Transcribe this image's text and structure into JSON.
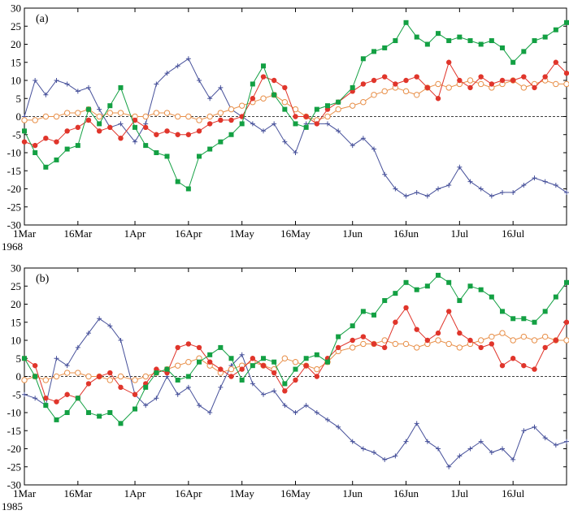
{
  "colors": {
    "green": "#13a043",
    "red": "#e0352b",
    "orange": "#e8904a",
    "blue": "#46509a",
    "axis": "#000000"
  },
  "chart_data": [
    {
      "type": "line",
      "panel_label": "(a)",
      "year": "1968",
      "x_unit": "day since 1 March",
      "xlim": [
        0,
        152
      ],
      "xticks": [
        0,
        15,
        31,
        46,
        61,
        76,
        92,
        107,
        122,
        137
      ],
      "xtick_labels": [
        "1Mar",
        "16Mar",
        "1Apr",
        "16Apr",
        "1May",
        "16May",
        "1Jun",
        "16Jun",
        "1Jul",
        "16Jul"
      ],
      "ylim": [
        -30,
        30
      ],
      "yticks": [
        -30,
        -25,
        -20,
        -15,
        -10,
        -5,
        0,
        5,
        10,
        15,
        20,
        25,
        30
      ],
      "zero_line": "dashed",
      "series": [
        {
          "name": "green-squares",
          "marker": "square-filled",
          "x": [
            0,
            3,
            6,
            9,
            12,
            15,
            18,
            21,
            24,
            27,
            31,
            34,
            37,
            40,
            43,
            46,
            49,
            52,
            55,
            58,
            61,
            64,
            67,
            70,
            73,
            76,
            79,
            82,
            85,
            88,
            92,
            95,
            98,
            101,
            104,
            107,
            110,
            113,
            116,
            119,
            122,
            125,
            128,
            131,
            134,
            137,
            140,
            143,
            146,
            149,
            152
          ],
          "y": [
            -4,
            -10,
            -14,
            -12,
            -9,
            -8,
            2,
            -2,
            3,
            8,
            -3,
            -8,
            -10,
            -11,
            -18,
            -20,
            -11,
            -9,
            -7,
            -5,
            -2,
            9,
            14,
            6,
            2,
            -2,
            -3,
            2,
            3,
            4,
            8,
            16,
            18,
            19,
            21,
            26,
            22,
            20,
            23,
            21,
            22,
            21,
            20,
            21,
            19,
            15,
            18,
            21,
            22,
            24,
            26
          ]
        },
        {
          "name": "red-circles",
          "marker": "circle-filled",
          "x": [
            0,
            3,
            6,
            9,
            12,
            15,
            18,
            21,
            24,
            27,
            31,
            34,
            37,
            40,
            43,
            46,
            49,
            52,
            55,
            58,
            61,
            64,
            67,
            70,
            73,
            76,
            79,
            82,
            85,
            88,
            92,
            95,
            98,
            101,
            104,
            107,
            110,
            113,
            116,
            119,
            122,
            125,
            128,
            131,
            134,
            137,
            140,
            143,
            146,
            149,
            152
          ],
          "y": [
            -7,
            -8,
            -6,
            -7,
            -4,
            -3,
            -1,
            -4,
            -3,
            -6,
            -1,
            -3,
            -5,
            -4,
            -5,
            -5,
            -4,
            -2,
            -1,
            -1,
            0,
            5,
            11,
            10,
            8,
            0,
            0,
            -2,
            2,
            4,
            7,
            9,
            10,
            11,
            9,
            10,
            11,
            8,
            5,
            15,
            10,
            8,
            11,
            9,
            10,
            10,
            11,
            8,
            11,
            15,
            12
          ]
        },
        {
          "name": "orange-open-circles",
          "marker": "circle-open",
          "x": [
            0,
            3,
            6,
            9,
            12,
            15,
            18,
            21,
            24,
            27,
            31,
            34,
            37,
            40,
            43,
            46,
            49,
            52,
            55,
            58,
            61,
            64,
            67,
            70,
            73,
            76,
            79,
            82,
            85,
            88,
            92,
            95,
            98,
            101,
            104,
            107,
            110,
            113,
            116,
            119,
            122,
            125,
            128,
            131,
            134,
            137,
            140,
            143,
            146,
            149,
            152
          ],
          "y": [
            -1,
            -1,
            0,
            0,
            1,
            1,
            2,
            0,
            1,
            1,
            0,
            0,
            1,
            1,
            0,
            0,
            -1,
            0,
            1,
            2,
            3,
            4,
            5,
            6,
            4,
            2,
            0,
            -1,
            0,
            2,
            3,
            4,
            6,
            7,
            8,
            7,
            6,
            8,
            9,
            8,
            9,
            10,
            9,
            8,
            9,
            10,
            8,
            9,
            10,
            9,
            9
          ]
        },
        {
          "name": "blue-plus",
          "marker": "plus",
          "x": [
            0,
            3,
            6,
            9,
            12,
            15,
            18,
            21,
            24,
            27,
            31,
            34,
            37,
            40,
            43,
            46,
            49,
            52,
            55,
            58,
            61,
            64,
            67,
            70,
            73,
            76,
            79,
            82,
            85,
            88,
            92,
            95,
            98,
            101,
            104,
            107,
            110,
            113,
            116,
            119,
            122,
            125,
            128,
            131,
            134,
            137,
            140,
            143,
            146,
            149,
            152
          ],
          "y": [
            0,
            10,
            6,
            10,
            9,
            7,
            8,
            2,
            -3,
            -2,
            -7,
            -2,
            9,
            12,
            14,
            16,
            10,
            5,
            8,
            2,
            0,
            -2,
            -4,
            -2,
            -7,
            -10,
            -2,
            -2,
            -2,
            -4,
            -8,
            -6,
            -9,
            -16,
            -20,
            -22,
            -21,
            -22,
            -20,
            -19,
            -14,
            -18,
            -20,
            -22,
            -21,
            -21,
            -19,
            -17,
            -18,
            -19,
            -21
          ]
        }
      ]
    },
    {
      "type": "line",
      "panel_label": "(b)",
      "year": "1985",
      "x_unit": "day since 1 March",
      "xlim": [
        0,
        152
      ],
      "xticks": [
        0,
        15,
        31,
        46,
        61,
        76,
        92,
        107,
        122,
        137
      ],
      "xtick_labels": [
        "1Mar",
        "16Mar",
        "1Apr",
        "16Apr",
        "1May",
        "16May",
        "1Jun",
        "16Jun",
        "1Jul",
        "16Jul"
      ],
      "ylim": [
        -30,
        30
      ],
      "yticks": [
        -30,
        -25,
        -20,
        -15,
        -10,
        -5,
        0,
        5,
        10,
        15,
        20,
        25,
        30
      ],
      "zero_line": "dashed",
      "series": [
        {
          "name": "green-squares",
          "marker": "square-filled",
          "x": [
            0,
            3,
            6,
            9,
            12,
            15,
            18,
            21,
            24,
            27,
            31,
            34,
            37,
            40,
            43,
            46,
            49,
            52,
            55,
            58,
            61,
            64,
            67,
            70,
            73,
            76,
            79,
            82,
            85,
            88,
            92,
            95,
            98,
            101,
            104,
            107,
            110,
            113,
            116,
            119,
            122,
            125,
            128,
            131,
            134,
            137,
            140,
            143,
            146,
            149,
            152
          ],
          "y": [
            5,
            0,
            -8,
            -12,
            -10,
            -6,
            -10,
            -11,
            -10,
            -13,
            -9,
            -3,
            1,
            2,
            -1,
            0,
            4,
            6,
            8,
            5,
            -1,
            3,
            5,
            4,
            -2,
            2,
            5,
            6,
            4,
            11,
            14,
            18,
            17,
            21,
            23,
            26,
            24,
            25,
            28,
            26,
            21,
            25,
            24,
            22,
            18,
            16,
            16,
            15,
            18,
            22,
            26
          ]
        },
        {
          "name": "red-circles",
          "marker": "circle-filled",
          "x": [
            0,
            3,
            6,
            9,
            12,
            15,
            18,
            21,
            24,
            27,
            31,
            34,
            37,
            40,
            43,
            46,
            49,
            52,
            55,
            58,
            61,
            64,
            67,
            70,
            73,
            76,
            79,
            82,
            85,
            88,
            92,
            95,
            98,
            101,
            104,
            107,
            110,
            113,
            116,
            119,
            122,
            125,
            128,
            131,
            134,
            137,
            140,
            143,
            146,
            149,
            152
          ],
          "y": [
            5,
            3,
            -6,
            -7,
            -5,
            -6,
            -2,
            0,
            1,
            -3,
            -5,
            -2,
            2,
            1,
            8,
            9,
            8,
            4,
            2,
            0,
            2,
            5,
            3,
            1,
            -4,
            -1,
            3,
            0,
            5,
            8,
            10,
            11,
            9,
            8,
            15,
            19,
            13,
            10,
            12,
            18,
            12,
            10,
            8,
            9,
            3,
            5,
            3,
            2,
            8,
            10,
            15
          ]
        },
        {
          "name": "orange-open-circles",
          "marker": "circle-open",
          "x": [
            0,
            3,
            6,
            9,
            12,
            15,
            18,
            21,
            24,
            27,
            31,
            34,
            37,
            40,
            43,
            46,
            49,
            52,
            55,
            58,
            61,
            64,
            67,
            70,
            73,
            76,
            79,
            82,
            85,
            88,
            92,
            95,
            98,
            101,
            104,
            107,
            110,
            113,
            116,
            119,
            122,
            125,
            128,
            131,
            134,
            137,
            140,
            143,
            146,
            149,
            152
          ],
          "y": [
            -1,
            0,
            -1,
            0,
            1,
            1,
            0,
            0,
            -1,
            0,
            -1,
            0,
            1,
            2,
            3,
            4,
            5,
            3,
            1,
            2,
            3,
            4,
            3,
            2,
            5,
            4,
            3,
            2,
            4,
            7,
            8,
            9,
            9,
            10,
            9,
            9,
            8,
            9,
            10,
            9,
            8,
            9,
            10,
            11,
            12,
            10,
            11,
            10,
            11,
            10,
            10
          ]
        },
        {
          "name": "blue-plus",
          "marker": "plus",
          "x": [
            0,
            3,
            6,
            9,
            12,
            15,
            18,
            21,
            24,
            27,
            31,
            34,
            37,
            40,
            43,
            46,
            49,
            52,
            55,
            58,
            61,
            64,
            67,
            70,
            73,
            76,
            79,
            82,
            85,
            88,
            92,
            95,
            98,
            101,
            104,
            107,
            110,
            113,
            116,
            119,
            122,
            125,
            128,
            131,
            134,
            137,
            140,
            143,
            146,
            149,
            152
          ],
          "y": [
            -5,
            -6,
            -8,
            5,
            3,
            8,
            12,
            16,
            14,
            10,
            -5,
            -8,
            -6,
            0,
            -5,
            -3,
            -8,
            -10,
            -3,
            3,
            6,
            -2,
            -5,
            -4,
            -8,
            -10,
            -8,
            -10,
            -12,
            -14,
            -18,
            -20,
            -21,
            -23,
            -22,
            -18,
            -13,
            -18,
            -20,
            -25,
            -22,
            -20,
            -18,
            -21,
            -20,
            -23,
            -15,
            -14,
            -17,
            -19,
            -18
          ]
        }
      ]
    }
  ]
}
